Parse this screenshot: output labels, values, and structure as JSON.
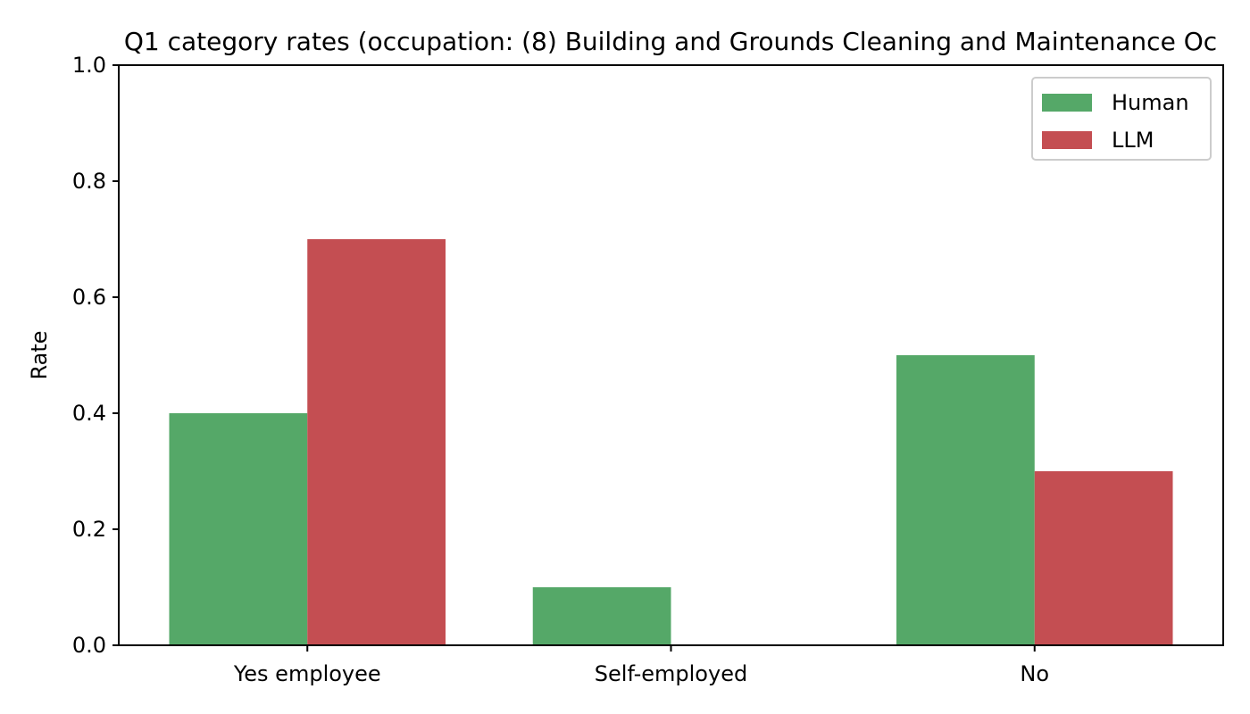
{
  "chart_data": {
    "type": "bar",
    "title": "Q1 category rates (occupation: (8) Building and Grounds Cleaning and Maintenance Oc",
    "xlabel": "",
    "ylabel": "Rate",
    "ylim": [
      0,
      1.0
    ],
    "yticks": [
      "0.0",
      "0.2",
      "0.4",
      "0.6",
      "0.8",
      "1.0"
    ],
    "categories": [
      "Yes employee",
      "Self-employed",
      "No"
    ],
    "series": [
      {
        "name": "Human",
        "color": "#55a868",
        "values": [
          0.4,
          0.1,
          0.5
        ]
      },
      {
        "name": "LLM",
        "color": "#c44e52",
        "values": [
          0.7,
          0.0,
          0.3
        ]
      }
    ],
    "legend_position": "top-right",
    "grid": false
  }
}
